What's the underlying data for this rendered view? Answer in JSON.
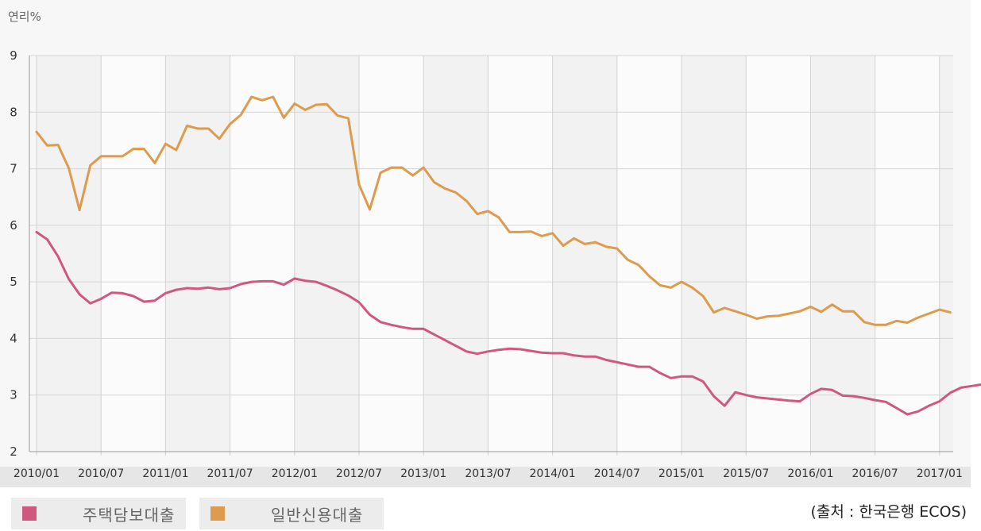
{
  "chart_data": {
    "type": "line",
    "ylabel": "연리%",
    "ylim": [
      2,
      9
    ],
    "yticks": [
      2,
      3,
      4,
      5,
      6,
      7,
      8,
      9
    ],
    "xlabels": [
      "2010/01",
      "2010/07",
      "2011/01",
      "2011/07",
      "2012/01",
      "2012/07",
      "2013/01",
      "2013/07",
      "2014/01",
      "2014/07",
      "2015/01",
      "2015/07",
      "2016/01",
      "2016/07",
      "2017/01"
    ],
    "grid": true,
    "legend_position": "bottom-left",
    "series": [
      {
        "name": "주택담보대출",
        "color": "#d0587e",
        "values": [
          5.88,
          5.75,
          5.45,
          5.05,
          4.78,
          4.62,
          4.7,
          4.81,
          4.8,
          4.75,
          4.65,
          4.67,
          4.8,
          4.86,
          4.89,
          4.88,
          4.9,
          4.87,
          4.89,
          4.96,
          5.0,
          5.01,
          5.01,
          4.95,
          5.06,
          5.02,
          5.0,
          4.93,
          4.85,
          4.76,
          4.64,
          4.42,
          4.29,
          4.24,
          4.2,
          4.17,
          4.17,
          4.07,
          3.97,
          3.87,
          3.77,
          3.73,
          3.77,
          3.8,
          3.82,
          3.81,
          3.78,
          3.75,
          3.74,
          3.74,
          3.7,
          3.68,
          3.68,
          3.62,
          3.58,
          3.54,
          3.5,
          3.5,
          3.39,
          3.3,
          3.33,
          3.33,
          3.24,
          2.98,
          2.81,
          3.05,
          3.0,
          2.96,
          2.94,
          2.92,
          2.9,
          2.89,
          3.02,
          3.11,
          3.09,
          2.99,
          2.98,
          2.95,
          2.91,
          2.88,
          2.77,
          2.66,
          2.71,
          2.81,
          2.89,
          3.04,
          3.13,
          3.16,
          3.19
        ]
      },
      {
        "name": "일반신용대출",
        "color": "#dd9b4d",
        "values": [
          7.65,
          7.41,
          7.42,
          7.01,
          6.27,
          7.06,
          7.22,
          7.22,
          7.22,
          7.35,
          7.35,
          7.1,
          7.44,
          7.33,
          7.76,
          7.71,
          7.71,
          7.53,
          7.79,
          7.95,
          8.27,
          8.21,
          8.27,
          7.9,
          8.15,
          8.04,
          8.13,
          8.14,
          7.94,
          7.89,
          6.72,
          6.28,
          6.93,
          7.02,
          7.02,
          6.88,
          7.02,
          6.76,
          6.65,
          6.58,
          6.43,
          6.2,
          6.25,
          6.14,
          5.88,
          5.88,
          5.89,
          5.81,
          5.86,
          5.64,
          5.77,
          5.67,
          5.7,
          5.62,
          5.59,
          5.39,
          5.3,
          5.1,
          4.94,
          4.9,
          5.0,
          4.9,
          4.75,
          4.46,
          4.54,
          4.48,
          4.42,
          4.35,
          4.39,
          4.4,
          4.44,
          4.48,
          4.56,
          4.47,
          4.6,
          4.48,
          4.48,
          4.29,
          4.24,
          4.24,
          4.31,
          4.28,
          4.37,
          4.44,
          4.51,
          4.46
        ]
      }
    ]
  },
  "legend": {
    "item1_label": "주택담보대출",
    "item1_color": "#d0587e",
    "item2_label": "일반신용대출",
    "item2_color": "#dd9b4d"
  },
  "source_note": "(출처 : 한국은행 ECOS)"
}
